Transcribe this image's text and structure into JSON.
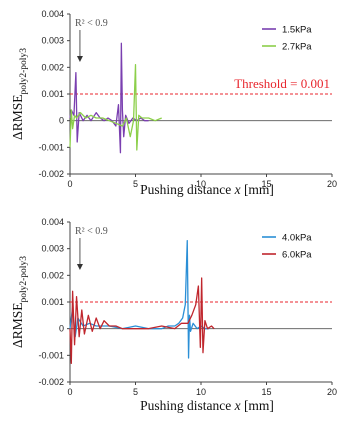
{
  "chart_data": [
    {
      "type": "line",
      "xlabel": "Pushing distance x [mm]",
      "ylabel": "ΔRMSE_poly2-poly3",
      "xlim": [
        0,
        20
      ],
      "ylim": [
        -0.002,
        0.004
      ],
      "xticks": [
        "0",
        "5",
        "10",
        "15",
        "20"
      ],
      "yticks": [
        "-0.002",
        "-0.001",
        "0",
        "0.001",
        "0.002",
        "0.003",
        "0.004"
      ],
      "grid": false,
      "legend_position": "top-right",
      "threshold": {
        "value": 0.001,
        "label": "Threshold = 0.001",
        "color": "#e8262d"
      },
      "annotation": {
        "text": "R² < 0.9",
        "x": 0.3
      },
      "series": [
        {
          "name": "1.5kPa",
          "color": "#7a3fb0",
          "x": [
            0,
            0.1,
            0.3,
            0.45,
            0.55,
            0.7,
            1.0,
            1.3,
            1.6,
            2.0,
            2.3,
            2.6,
            2.9,
            3.2,
            3.5,
            3.7,
            3.85,
            3.92,
            4.0,
            4.1,
            4.25,
            4.5,
            4.8,
            5.1,
            5.4,
            5.7,
            6.0
          ],
          "y": [
            0.0001,
            0.0004,
            0.0002,
            0.0018,
            -0.0008,
            0.0003,
            0.0,
            0.0002,
            0.0,
            0.0003,
            0.0001,
            0.0,
            0.0001,
            0.0,
            -0.0002,
            0.0006,
            -0.0012,
            0.0029,
            0.0004,
            -0.0006,
            0.0002,
            -0.0001,
            0.0001,
            0.0,
            0.0001,
            0.0,
            0.0
          ]
        },
        {
          "name": "2.7kPa",
          "color": "#8ccf4a",
          "x": [
            0,
            0.1,
            0.2,
            0.35,
            0.5,
            0.8,
            1.2,
            1.6,
            2.0,
            2.5,
            3.0,
            3.5,
            4.0,
            4.3,
            4.6,
            4.85,
            5.0,
            5.1,
            5.25,
            5.5,
            6.0,
            6.5,
            7.0
          ],
          "y": [
            -0.001,
            0.0004,
            -0.0003,
            0.0002,
            0.0001,
            0.0003,
            0.0001,
            0.0002,
            0.0001,
            0.0001,
            0.0,
            -0.0001,
            -0.0002,
            0.0001,
            -0.0006,
            0.0,
            0.0021,
            -0.0011,
            0.0002,
            0.0001,
            0.0001,
            0.0,
            0.0001
          ]
        }
      ]
    },
    {
      "type": "line",
      "xlabel": "Pushing distance x [mm]",
      "ylabel": "ΔRMSE_poly2-poly3",
      "xlim": [
        0,
        20
      ],
      "ylim": [
        -0.002,
        0.004
      ],
      "xticks": [
        "0",
        "5",
        "10",
        "15",
        "20"
      ],
      "yticks": [
        "-0.002",
        "-0.001",
        "0",
        "0.001",
        "0.002",
        "0.003",
        "0.004"
      ],
      "grid": false,
      "legend_position": "top-right",
      "threshold": {
        "value": 0.001,
        "label": "",
        "color": "#e8262d"
      },
      "annotation": {
        "text": "R² < 0.9",
        "x": 0.3
      },
      "series": [
        {
          "name": "4.0kPa",
          "color": "#2b8fd6",
          "x": [
            0,
            0.2,
            0.4,
            0.6,
            1.0,
            1.5,
            2.0,
            3.0,
            4.0,
            5.0,
            6.0,
            7.0,
            7.5,
            8.0,
            8.3,
            8.6,
            8.8,
            8.95,
            9.05,
            9.12,
            9.2,
            9.4,
            9.7,
            10.0,
            10.3,
            10.6
          ],
          "y": [
            0.0,
            0.0008,
            -0.0003,
            0.0004,
            0.0001,
            0.0002,
            0.0001,
            0.0001,
            0.0,
            0.0001,
            0.0,
            0.0,
            0.0001,
            0.0001,
            0.0002,
            0.0004,
            0.0009,
            0.0033,
            -0.0011,
            0.0005,
            -0.0001,
            0.0002,
            0.0,
            0.0001,
            0.0,
            0.0
          ]
        },
        {
          "name": "6.0kPa",
          "color": "#c0262d",
          "x": [
            0,
            0.1,
            0.2,
            0.35,
            0.5,
            0.7,
            0.9,
            1.1,
            1.4,
            1.7,
            2.0,
            2.3,
            2.6,
            3.0,
            3.5,
            4.0,
            5.0,
            6.0,
            7.0,
            8.0,
            8.5,
            9.0,
            9.3,
            9.6,
            9.8,
            9.95,
            10.05,
            10.15,
            10.3,
            10.5,
            10.8,
            11.0
          ],
          "y": [
            0.0,
            -0.0013,
            0.0014,
            -0.0006,
            0.0012,
            -0.0003,
            0.0007,
            -0.0002,
            0.0005,
            -0.0001,
            0.0004,
            0.0,
            0.0003,
            0.0001,
            0.0001,
            0.0,
            0.0,
            0.0,
            0.0001,
            0.0,
            0.0002,
            0.0002,
            0.0005,
            0.0009,
            0.0016,
            -0.0007,
            0.0019,
            -0.0009,
            0.0003,
            0.0,
            0.0001,
            0.0
          ]
        }
      ]
    }
  ]
}
